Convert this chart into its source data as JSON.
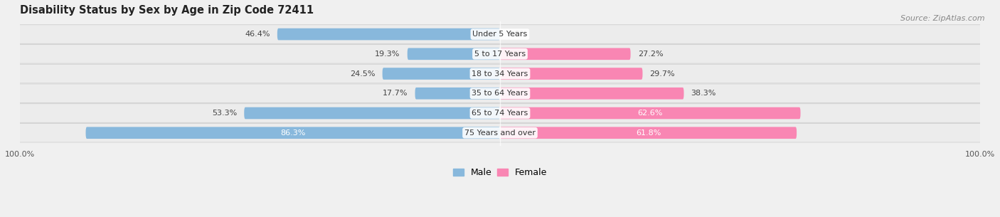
{
  "title": "Disability Status by Sex by Age in Zip Code 72411",
  "source": "Source: ZipAtlas.com",
  "categories": [
    "Under 5 Years",
    "5 to 17 Years",
    "18 to 34 Years",
    "35 to 64 Years",
    "65 to 74 Years",
    "75 Years and over"
  ],
  "male_values": [
    46.4,
    19.3,
    24.5,
    17.7,
    53.3,
    86.3
  ],
  "female_values": [
    0.0,
    27.2,
    29.7,
    38.3,
    62.6,
    61.8
  ],
  "male_color": "#88b8dc",
  "female_color": "#f986b3",
  "row_bg_color": "#e8e8e8",
  "row_bg_color2": "#e0e0e0",
  "fig_bg_color": "#f0f0f0",
  "title_fontsize": 10.5,
  "label_fontsize": 8,
  "cat_fontsize": 8,
  "source_fontsize": 8,
  "bar_height": 0.6,
  "legend_male_label": "Male",
  "legend_female_label": "Female"
}
